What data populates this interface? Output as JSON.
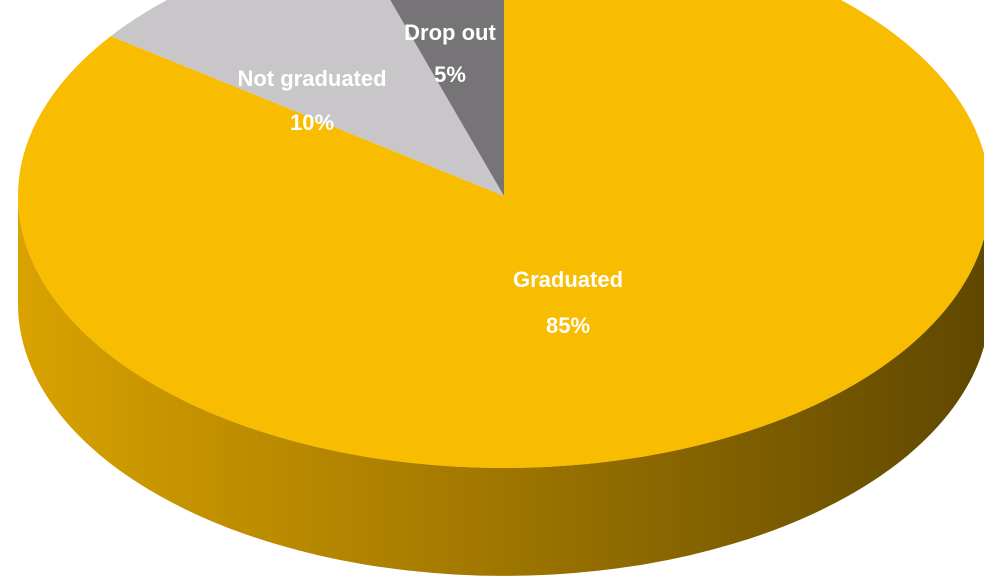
{
  "chart_data": {
    "type": "pie",
    "variant": "3d",
    "title": "",
    "slices": [
      {
        "name": "Graduated",
        "value": 85,
        "label": "85%",
        "color": "#F8BC00"
      },
      {
        "name": "Not graduated",
        "value": 10,
        "label": "10%",
        "color": "#C8C6C8"
      },
      {
        "name": "Drop out",
        "value": 5,
        "label": "5%",
        "color": "#767476"
      }
    ],
    "legend": "none",
    "data_labels": "category-and-percent"
  }
}
